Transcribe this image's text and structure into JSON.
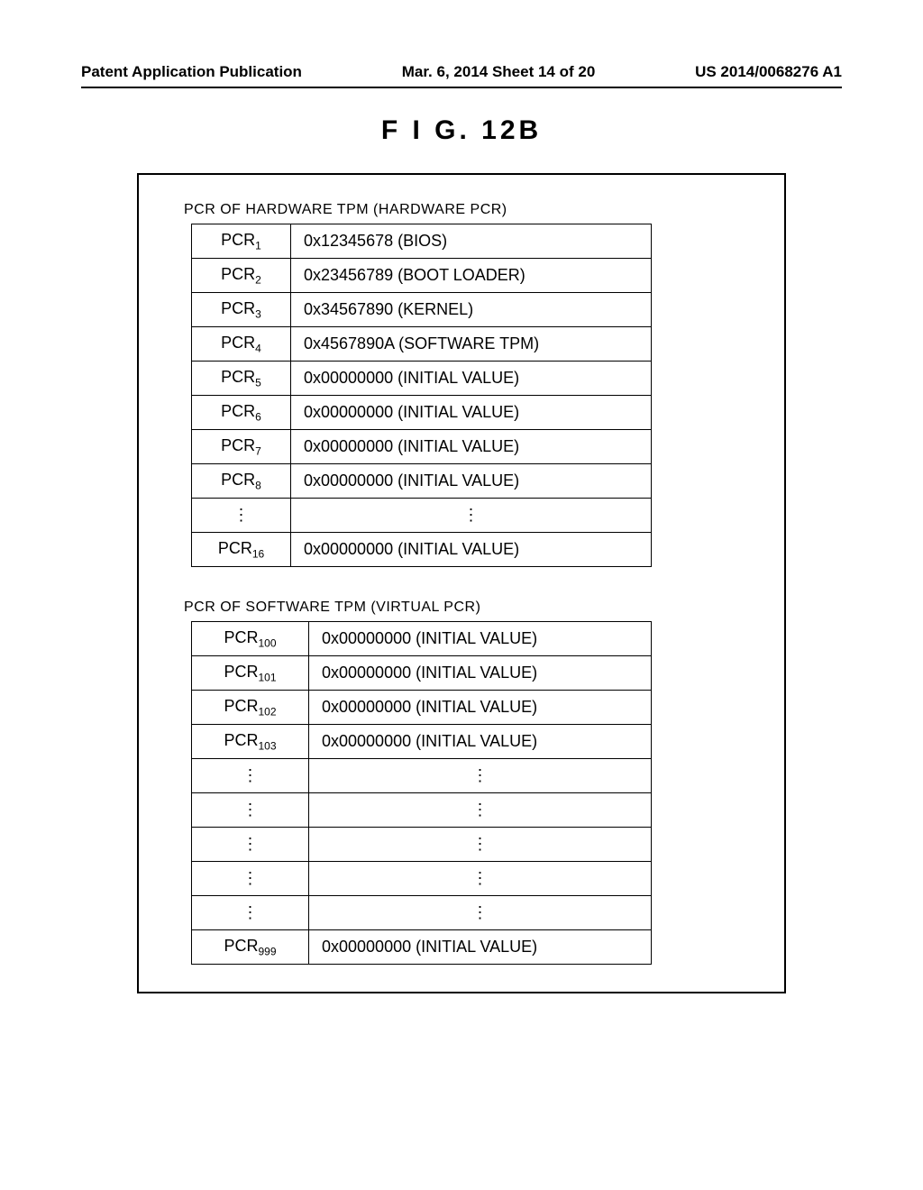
{
  "header": {
    "left": "Patent Application Publication",
    "center": "Mar. 6, 2014  Sheet 14 of 20",
    "right": "US 2014/0068276 A1"
  },
  "figure_title": "F I G.   12B",
  "hardware": {
    "label": "PCR OF HARDWARE TPM (HARDWARE PCR)",
    "rows": [
      {
        "pcr": "PCR",
        "sub": "1",
        "value": "0x12345678  (BIOS)"
      },
      {
        "pcr": "PCR",
        "sub": "2",
        "value": "0x23456789  (BOOT LOADER)"
      },
      {
        "pcr": "PCR",
        "sub": "3",
        "value": "0x34567890  (KERNEL)"
      },
      {
        "pcr": "PCR",
        "sub": "4",
        "value": "0x4567890A (SOFTWARE TPM)"
      },
      {
        "pcr": "PCR",
        "sub": "5",
        "value": "0x00000000  (INITIAL VALUE)"
      },
      {
        "pcr": "PCR",
        "sub": "6",
        "value": "0x00000000  (INITIAL VALUE)"
      },
      {
        "pcr": "PCR",
        "sub": "7",
        "value": "0x00000000  (INITIAL VALUE)"
      },
      {
        "pcr": "PCR",
        "sub": "8",
        "value": "0x00000000  (INITIAL VALUE)"
      },
      {
        "pcr": "⋮",
        "sub": "",
        "value": "⋮",
        "dots": true
      },
      {
        "pcr": "PCR",
        "sub": "16",
        "value": "0x00000000  (INITIAL VALUE)"
      }
    ]
  },
  "software": {
    "label": "PCR OF SOFTWARE TPM (VIRTUAL PCR)",
    "rows": [
      {
        "pcr": "PCR",
        "sub": "100",
        "value": "0x00000000 (INITIAL VALUE)"
      },
      {
        "pcr": "PCR",
        "sub": "101",
        "value": "0x00000000 (INITIAL VALUE)"
      },
      {
        "pcr": "PCR",
        "sub": "102",
        "value": "0x00000000 (INITIAL VALUE)"
      },
      {
        "pcr": "PCR",
        "sub": "103",
        "value": "0x00000000 (INITIAL VALUE)"
      },
      {
        "pcr": "⋮",
        "sub": "",
        "value": "⋮",
        "dots": true
      },
      {
        "pcr": "⋮",
        "sub": "",
        "value": "⋮",
        "dots": true
      },
      {
        "pcr": "⋮",
        "sub": "",
        "value": "⋮",
        "dots": true
      },
      {
        "pcr": "⋮",
        "sub": "",
        "value": "⋮",
        "dots": true
      },
      {
        "pcr": "⋮",
        "sub": "",
        "value": "⋮",
        "dots": true
      },
      {
        "pcr": "PCR",
        "sub": "999",
        "value": "0x00000000 (INITIAL VALUE)"
      }
    ]
  }
}
